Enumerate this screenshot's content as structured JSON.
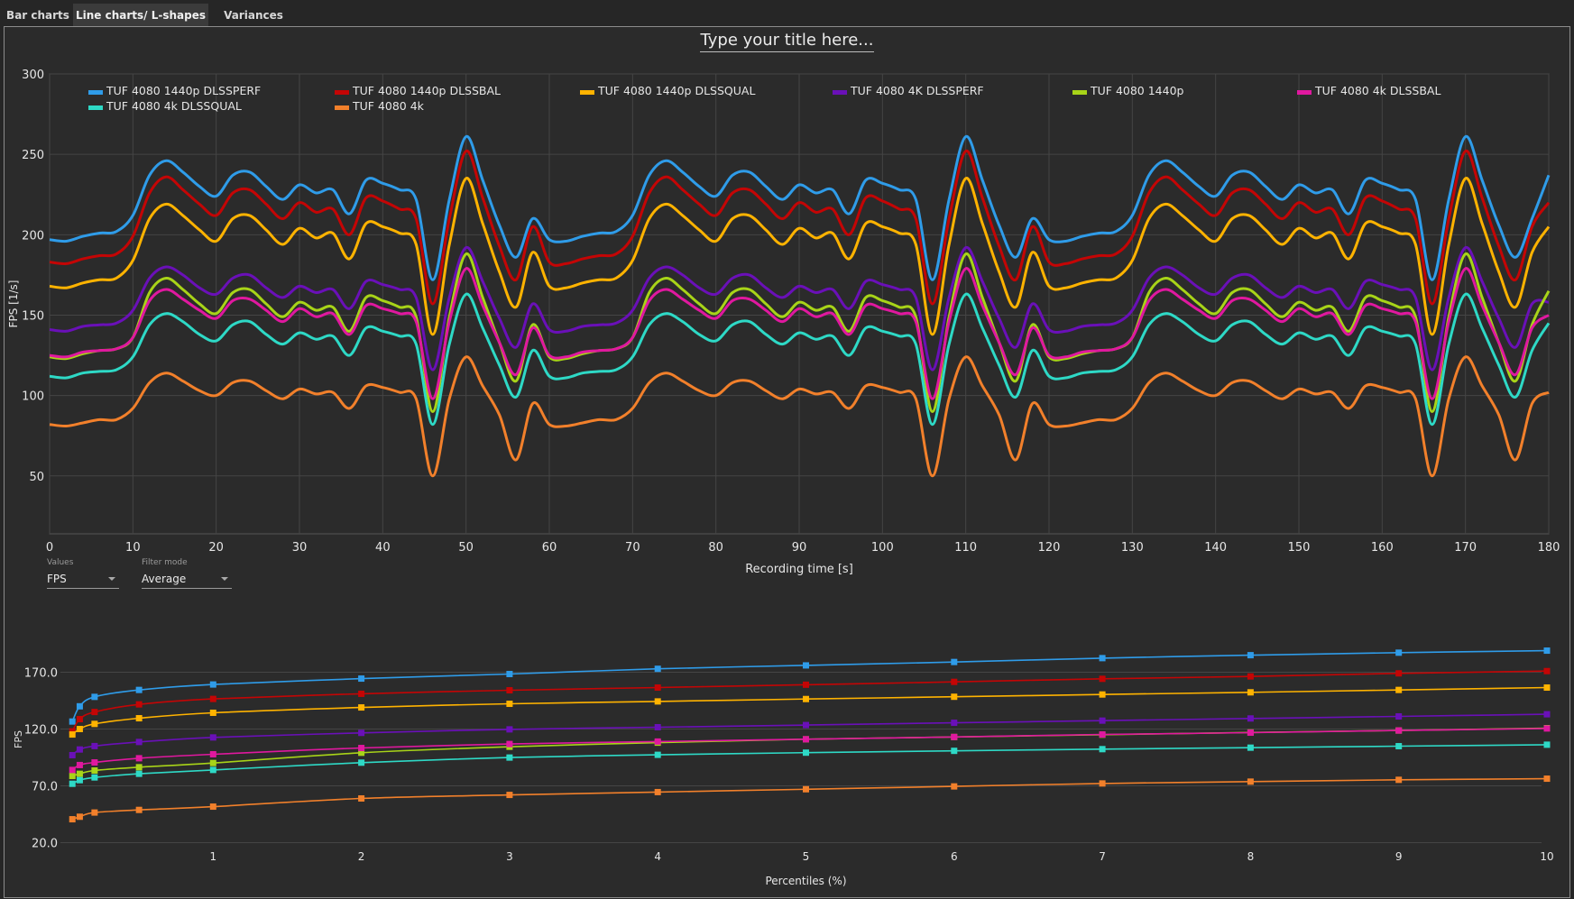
{
  "tabs": [
    {
      "label": "Bar charts",
      "active": false
    },
    {
      "label": "Line charts/ L-shapes",
      "active": true
    },
    {
      "label": "Variances",
      "active": false
    }
  ],
  "title": "Type your title here...",
  "controls": {
    "values_label": "Values",
    "values_selected": "FPS",
    "filter_label": "Filter mode",
    "filter_selected": "Average"
  },
  "colors": {
    "background": "#2b2b2b",
    "grid": "#454545"
  },
  "chart_data": [
    {
      "type": "line",
      "xlabel": "Recording time [s]",
      "ylabel": "FPS [1/s]",
      "xlim": [
        0,
        180
      ],
      "ylim": [
        14,
        300
      ],
      "xticks": [
        0,
        10,
        20,
        30,
        40,
        50,
        60,
        70,
        80,
        90,
        100,
        110,
        120,
        130,
        140,
        150,
        160,
        170,
        180
      ],
      "yticks": [
        50,
        100,
        150,
        200,
        250,
        300
      ],
      "grid": true,
      "legend": "top",
      "x": [
        0,
        2,
        4,
        6,
        8,
        10,
        12,
        14,
        16,
        18,
        20,
        22,
        24,
        26,
        28,
        30,
        32,
        34,
        36,
        38,
        40,
        42,
        44,
        46,
        48,
        50,
        52,
        54,
        56,
        58,
        60,
        62,
        64,
        66,
        68,
        70,
        72,
        74,
        76,
        78,
        80,
        82,
        84,
        86,
        88,
        90,
        92,
        94,
        96,
        98,
        100,
        102,
        104,
        106,
        108,
        110,
        112,
        114,
        116,
        118,
        120,
        122,
        124,
        126,
        128,
        130,
        132,
        134,
        136,
        138,
        140,
        142,
        144,
        146,
        148,
        150,
        152,
        154,
        156,
        158,
        160,
        162,
        164,
        166,
        168,
        170,
        172,
        174,
        176,
        178,
        180
      ],
      "series": [
        {
          "name": "TUF 4080 1440p DLSSPERF",
          "color": "#2f9ce9",
          "values": [
            197,
            196,
            199,
            201,
            202,
            212,
            237,
            246,
            239,
            230,
            224,
            237,
            239,
            230,
            222,
            231,
            226,
            228,
            213,
            234,
            232,
            228,
            222,
            172,
            222,
            261,
            234,
            206,
            186,
            210,
            197,
            196,
            199,
            201,
            202,
            212,
            237,
            246,
            239,
            230,
            224,
            237,
            239,
            230,
            222,
            231,
            226,
            228,
            213,
            234,
            232,
            228,
            222,
            172,
            222,
            261,
            234,
            206,
            186,
            210,
            197,
            196,
            199,
            201,
            202,
            212,
            237,
            246,
            239,
            230,
            224,
            237,
            239,
            230,
            222,
            231,
            226,
            228,
            213,
            234,
            232,
            228,
            222,
            172,
            222,
            261,
            234,
            206,
            186,
            210,
            237
          ]
        },
        {
          "name": "TUF 4080 1440p DLSSBAL",
          "color": "#c40505",
          "values": [
            183,
            182,
            185,
            187,
            188,
            199,
            226,
            236,
            228,
            219,
            212,
            226,
            228,
            219,
            210,
            220,
            214,
            216,
            200,
            223,
            221,
            216,
            210,
            157,
            210,
            252,
            223,
            193,
            172,
            205,
            183,
            182,
            185,
            187,
            188,
            199,
            226,
            236,
            228,
            219,
            212,
            226,
            228,
            219,
            210,
            220,
            214,
            216,
            200,
            223,
            221,
            216,
            210,
            157,
            210,
            252,
            223,
            193,
            172,
            205,
            183,
            182,
            185,
            187,
            188,
            199,
            226,
            236,
            228,
            219,
            212,
            226,
            228,
            219,
            210,
            220,
            214,
            216,
            200,
            223,
            221,
            216,
            210,
            157,
            210,
            252,
            223,
            193,
            172,
            205,
            220
          ]
        },
        {
          "name": "TUF 4080 1440p DLSSQUAL",
          "color": "#ffb300",
          "values": [
            168,
            167,
            170,
            172,
            173,
            184,
            210,
            219,
            212,
            203,
            196,
            210,
            212,
            203,
            194,
            204,
            198,
            201,
            185,
            207,
            205,
            201,
            194,
            138,
            194,
            235,
            207,
            177,
            155,
            189,
            168,
            167,
            170,
            172,
            173,
            184,
            210,
            219,
            212,
            203,
            196,
            210,
            212,
            203,
            194,
            204,
            198,
            201,
            185,
            207,
            205,
            201,
            194,
            138,
            194,
            235,
            207,
            177,
            155,
            189,
            168,
            167,
            170,
            172,
            173,
            184,
            210,
            219,
            212,
            203,
            196,
            210,
            212,
            203,
            194,
            204,
            198,
            201,
            185,
            207,
            205,
            201,
            194,
            138,
            194,
            235,
            207,
            177,
            155,
            189,
            205
          ]
        },
        {
          "name": "TUF 4080 4K DLSSPERF",
          "color": "#6a10b8",
          "values": [
            141,
            140,
            143,
            144,
            145,
            153,
            173,
            180,
            175,
            167,
            163,
            173,
            175,
            167,
            161,
            168,
            164,
            166,
            154,
            171,
            169,
            166,
            161,
            116,
            161,
            192,
            171,
            148,
            130,
            157,
            141,
            140,
            143,
            144,
            145,
            153,
            173,
            180,
            175,
            167,
            163,
            173,
            175,
            167,
            161,
            168,
            164,
            166,
            154,
            171,
            169,
            166,
            161,
            116,
            161,
            192,
            171,
            148,
            130,
            157,
            141,
            140,
            143,
            144,
            145,
            153,
            173,
            180,
            175,
            167,
            163,
            173,
            175,
            167,
            161,
            168,
            164,
            166,
            154,
            171,
            169,
            166,
            161,
            116,
            161,
            192,
            171,
            148,
            130,
            157,
            158
          ]
        },
        {
          "name": "TUF 4080 1440p",
          "color": "#a8d418",
          "values": [
            124,
            123,
            126,
            128,
            129,
            136,
            164,
            173,
            166,
            157,
            151,
            164,
            166,
            157,
            149,
            158,
            153,
            155,
            140,
            161,
            159,
            155,
            149,
            90,
            149,
            188,
            161,
            133,
            109,
            144,
            124,
            123,
            126,
            128,
            129,
            136,
            164,
            173,
            166,
            157,
            151,
            164,
            166,
            157,
            149,
            158,
            153,
            155,
            140,
            161,
            159,
            155,
            149,
            90,
            149,
            188,
            161,
            133,
            109,
            144,
            124,
            123,
            126,
            128,
            129,
            136,
            164,
            173,
            166,
            157,
            151,
            164,
            166,
            157,
            149,
            158,
            153,
            155,
            140,
            161,
            159,
            155,
            149,
            90,
            149,
            188,
            161,
            133,
            109,
            144,
            165
          ]
        },
        {
          "name": "TUF 4080 4k DLSSBAL",
          "color": "#e0189f",
          "values": [
            125,
            124,
            127,
            128,
            129,
            136,
            159,
            166,
            160,
            153,
            148,
            159,
            160,
            153,
            146,
            154,
            149,
            151,
            138,
            156,
            154,
            151,
            146,
            98,
            146,
            179,
            156,
            133,
            113,
            142,
            125,
            124,
            127,
            128,
            129,
            136,
            159,
            166,
            160,
            153,
            148,
            159,
            160,
            153,
            146,
            154,
            149,
            151,
            138,
            156,
            154,
            151,
            146,
            98,
            146,
            179,
            156,
            133,
            113,
            142,
            125,
            124,
            127,
            128,
            129,
            136,
            159,
            166,
            160,
            153,
            148,
            159,
            160,
            153,
            146,
            154,
            149,
            151,
            138,
            156,
            154,
            151,
            146,
            98,
            146,
            179,
            156,
            133,
            113,
            142,
            150
          ]
        },
        {
          "name": "TUF 4080 4k DLSSQUAL",
          "color": "#2ed9c6",
          "values": [
            112,
            111,
            114,
            115,
            116,
            124,
            144,
            151,
            146,
            138,
            134,
            144,
            146,
            138,
            132,
            139,
            135,
            137,
            125,
            142,
            140,
            137,
            132,
            82,
            132,
            163,
            142,
            119,
            99,
            128,
            112,
            111,
            114,
            115,
            116,
            124,
            144,
            151,
            146,
            138,
            134,
            144,
            146,
            138,
            132,
            139,
            135,
            137,
            125,
            142,
            140,
            137,
            132,
            82,
            132,
            163,
            142,
            119,
            99,
            128,
            112,
            111,
            114,
            115,
            116,
            124,
            144,
            151,
            146,
            138,
            134,
            144,
            146,
            138,
            132,
            139,
            135,
            137,
            125,
            142,
            140,
            137,
            132,
            82,
            132,
            163,
            142,
            119,
            99,
            128,
            145
          ]
        },
        {
          "name": "TUF 4080 4k",
          "color": "#f2802b",
          "values": [
            82,
            81,
            83,
            85,
            85,
            92,
            108,
            114,
            109,
            103,
            100,
            108,
            109,
            103,
            98,
            104,
            101,
            102,
            92,
            106,
            105,
            102,
            98,
            50,
            98,
            124,
            106,
            88,
            60,
            95,
            82,
            81,
            83,
            85,
            85,
            92,
            108,
            114,
            109,
            103,
            100,
            108,
            109,
            103,
            98,
            104,
            101,
            102,
            92,
            106,
            105,
            102,
            98,
            50,
            98,
            124,
            106,
            88,
            60,
            95,
            82,
            81,
            83,
            85,
            85,
            92,
            108,
            114,
            109,
            103,
            100,
            108,
            109,
            103,
            98,
            104,
            101,
            102,
            92,
            106,
            105,
            102,
            98,
            50,
            98,
            124,
            106,
            88,
            60,
            95,
            102
          ]
        }
      ]
    },
    {
      "type": "line",
      "xlabel": "Percentiles (%)",
      "ylabel": "FPS",
      "xlim": [
        0,
        10
      ],
      "ylim": [
        20,
        195
      ],
      "xticks": [
        1,
        2,
        3,
        4,
        5,
        6,
        7,
        8,
        9,
        10
      ],
      "yticks": [
        "20.0",
        "70.0",
        "120.0",
        "170.0"
      ],
      "grid": true,
      "x": [
        0.05,
        0.1,
        0.2,
        0.5,
        1,
        2,
        3,
        4,
        5,
        6,
        7,
        8,
        9,
        10
      ],
      "series": [
        {
          "color": "#2f9ce9",
          "values": [
            126.6,
            140,
            148.3,
            154.4,
            159.2,
            164.4,
            168.4,
            173,
            176,
            179,
            182.4,
            185,
            187.2,
            189
          ]
        },
        {
          "color": "#c40505",
          "values": [
            118,
            128.7,
            135,
            141.7,
            146.5,
            151,
            154.1,
            156.5,
            159,
            161.5,
            164.2,
            166.3,
            169,
            171
          ]
        },
        {
          "color": "#ffb300",
          "values": [
            115.2,
            120,
            124.5,
            129.5,
            134.3,
            139,
            142.2,
            144.3,
            146.4,
            148.4,
            150.4,
            152.3,
            154.4,
            156.5
          ]
        },
        {
          "color": "#6a10b8",
          "values": [
            97,
            102,
            105,
            108.6,
            112.6,
            116.6,
            119.7,
            121.6,
            123.5,
            125.5,
            127.4,
            129.3,
            131.1,
            133
          ]
        },
        {
          "color": "#a8d418",
          "values": [
            78.7,
            80.6,
            83.5,
            86.4,
            90.1,
            99.1,
            104.4,
            108,
            111,
            113,
            115,
            117,
            118.7,
            120.8
          ]
        },
        {
          "color": "#e0189f",
          "values": [
            84,
            88.3,
            90.6,
            94.3,
            97.8,
            103.3,
            106.8,
            109,
            111,
            113,
            115.2,
            116.8,
            118.7,
            120.5
          ]
        },
        {
          "color": "#2ed9c6",
          "values": [
            71.8,
            75,
            77.4,
            80.6,
            84,
            90.4,
            94.9,
            97.3,
            99.2,
            100.8,
            102.3,
            103.6,
            104.9,
            106.2
          ]
        },
        {
          "color": "#f2802b",
          "values": [
            40.6,
            42.8,
            46.5,
            48.8,
            51.7,
            58.9,
            62,
            64.5,
            67,
            69.5,
            72.1,
            73.7,
            75.3,
            76.3
          ]
        }
      ]
    }
  ]
}
